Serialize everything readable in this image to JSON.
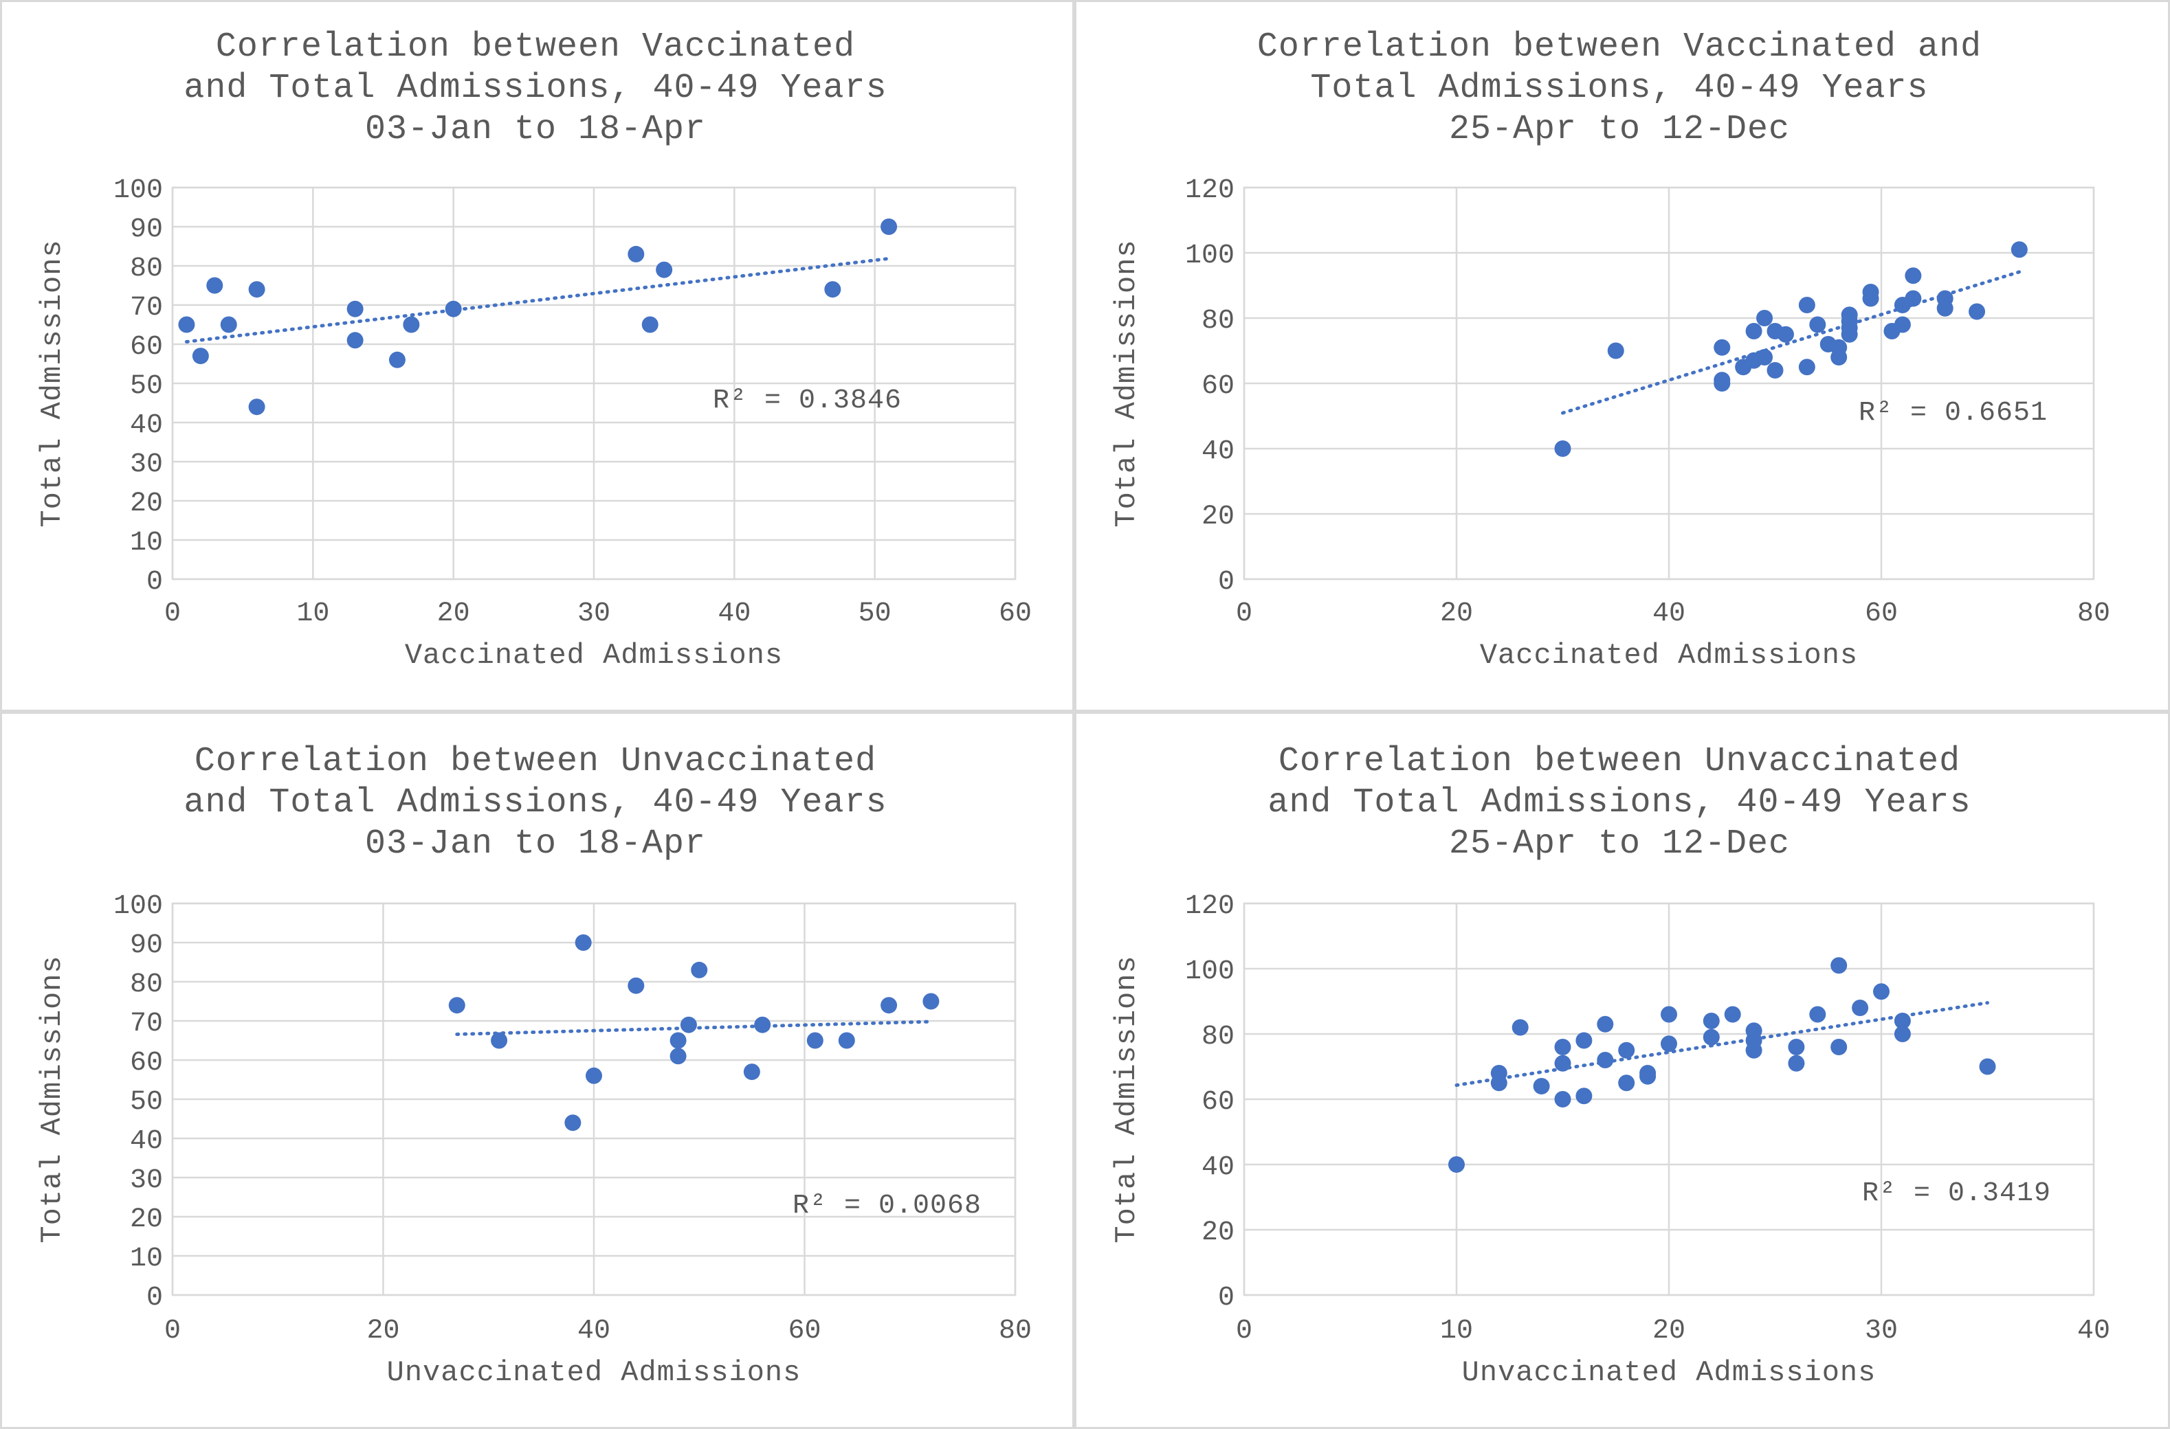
{
  "chart_data": [
    {
      "type": "scatter",
      "title": [
        "Correlation between Vaccinated",
        "and Total Admissions, 40-49 Years",
        "03-Jan to 18-Apr"
      ],
      "xlabel": "Vaccinated Admissions",
      "ylabel": "Total Admissions",
      "xlim": [
        0,
        60
      ],
      "xstep": 10,
      "ylim": [
        0,
        100
      ],
      "ystep": 10,
      "grid": true,
      "trendline": "linear",
      "r2": "R² = 0.3846",
      "points": [
        [
          1,
          65
        ],
        [
          2,
          57
        ],
        [
          3,
          75
        ],
        [
          4,
          65
        ],
        [
          6,
          74
        ],
        [
          6,
          44
        ],
        [
          13,
          69
        ],
        [
          13,
          61
        ],
        [
          16,
          56
        ],
        [
          17,
          65
        ],
        [
          20,
          69
        ],
        [
          33,
          83
        ],
        [
          34,
          65
        ],
        [
          35,
          79
        ],
        [
          47,
          74
        ],
        [
          51,
          90
        ]
      ]
    },
    {
      "type": "scatter",
      "title": [
        "Correlation between Vaccinated and",
        "Total Admissions, 40-49 Years",
        "25-Apr to 12-Dec"
      ],
      "xlabel": "Vaccinated Admissions",
      "ylabel": "Total Admissions",
      "xlim": [
        0,
        80
      ],
      "xstep": 20,
      "ylim": [
        0,
        120
      ],
      "ystep": 20,
      "grid": true,
      "trendline": "linear",
      "r2": "R² = 0.6651",
      "points": [
        [
          30,
          40
        ],
        [
          35,
          70
        ],
        [
          45,
          71
        ],
        [
          45,
          61
        ],
        [
          45,
          60
        ],
        [
          47,
          65
        ],
        [
          48,
          76
        ],
        [
          48,
          67
        ],
        [
          49,
          80
        ],
        [
          49,
          68
        ],
        [
          50,
          76
        ],
        [
          50,
          64
        ],
        [
          51,
          75
        ],
        [
          53,
          84
        ],
        [
          53,
          65
        ],
        [
          54,
          78
        ],
        [
          55,
          72
        ],
        [
          56,
          71
        ],
        [
          56,
          68
        ],
        [
          57,
          81
        ],
        [
          57,
          79
        ],
        [
          57,
          77
        ],
        [
          57,
          75
        ],
        [
          59,
          88
        ],
        [
          59,
          86
        ],
        [
          61,
          76
        ],
        [
          62,
          84
        ],
        [
          62,
          78
        ],
        [
          63,
          93
        ],
        [
          63,
          86
        ],
        [
          66,
          86
        ],
        [
          66,
          83
        ],
        [
          69,
          82
        ],
        [
          73,
          101
        ]
      ]
    },
    {
      "type": "scatter",
      "title": [
        "Correlation between Unvaccinated",
        "and Total Admissions, 40-49 Years",
        "03-Jan to 18-Apr"
      ],
      "xlabel": "Unvaccinated Admissions",
      "ylabel": "Total Admissions",
      "xlim": [
        0,
        80
      ],
      "xstep": 20,
      "ylim": [
        0,
        100
      ],
      "ystep": 10,
      "grid": true,
      "trendline": "linear",
      "r2": "R² = 0.0068",
      "points": [
        [
          27,
          74
        ],
        [
          31,
          65
        ],
        [
          38,
          44
        ],
        [
          39,
          90
        ],
        [
          40,
          56
        ],
        [
          44,
          79
        ],
        [
          48,
          65
        ],
        [
          48,
          61
        ],
        [
          49,
          69
        ],
        [
          50,
          83
        ],
        [
          55,
          57
        ],
        [
          56,
          69
        ],
        [
          61,
          65
        ],
        [
          64,
          65
        ],
        [
          68,
          74
        ],
        [
          72,
          75
        ]
      ]
    },
    {
      "type": "scatter",
      "title": [
        "Correlation between Unvaccinated",
        "and Total Admissions, 40-49 Years",
        "25-Apr to 12-Dec"
      ],
      "xlabel": "Unvaccinated Admissions",
      "ylabel": "Total Admissions",
      "xlim": [
        0,
        40
      ],
      "xstep": 10,
      "ylim": [
        0,
        120
      ],
      "ystep": 20,
      "grid": true,
      "trendline": "linear",
      "r2": "R² = 0.3419",
      "points": [
        [
          10,
          40
        ],
        [
          12,
          68
        ],
        [
          12,
          65
        ],
        [
          13,
          82
        ],
        [
          14,
          64
        ],
        [
          15,
          76
        ],
        [
          15,
          71
        ],
        [
          15,
          60
        ],
        [
          16,
          78
        ],
        [
          16,
          61
        ],
        [
          17,
          83
        ],
        [
          17,
          72
        ],
        [
          18,
          75
        ],
        [
          18,
          65
        ],
        [
          19,
          68
        ],
        [
          19,
          67
        ],
        [
          20,
          86
        ],
        [
          20,
          77
        ],
        [
          22,
          84
        ],
        [
          22,
          79
        ],
        [
          23,
          86
        ],
        [
          24,
          81
        ],
        [
          24,
          78
        ],
        [
          24,
          75
        ],
        [
          26,
          76
        ],
        [
          26,
          71
        ],
        [
          27,
          86
        ],
        [
          28,
          101
        ],
        [
          28,
          76
        ],
        [
          29,
          88
        ],
        [
          30,
          93
        ],
        [
          31,
          84
        ],
        [
          31,
          80
        ],
        [
          35,
          70
        ]
      ]
    }
  ]
}
